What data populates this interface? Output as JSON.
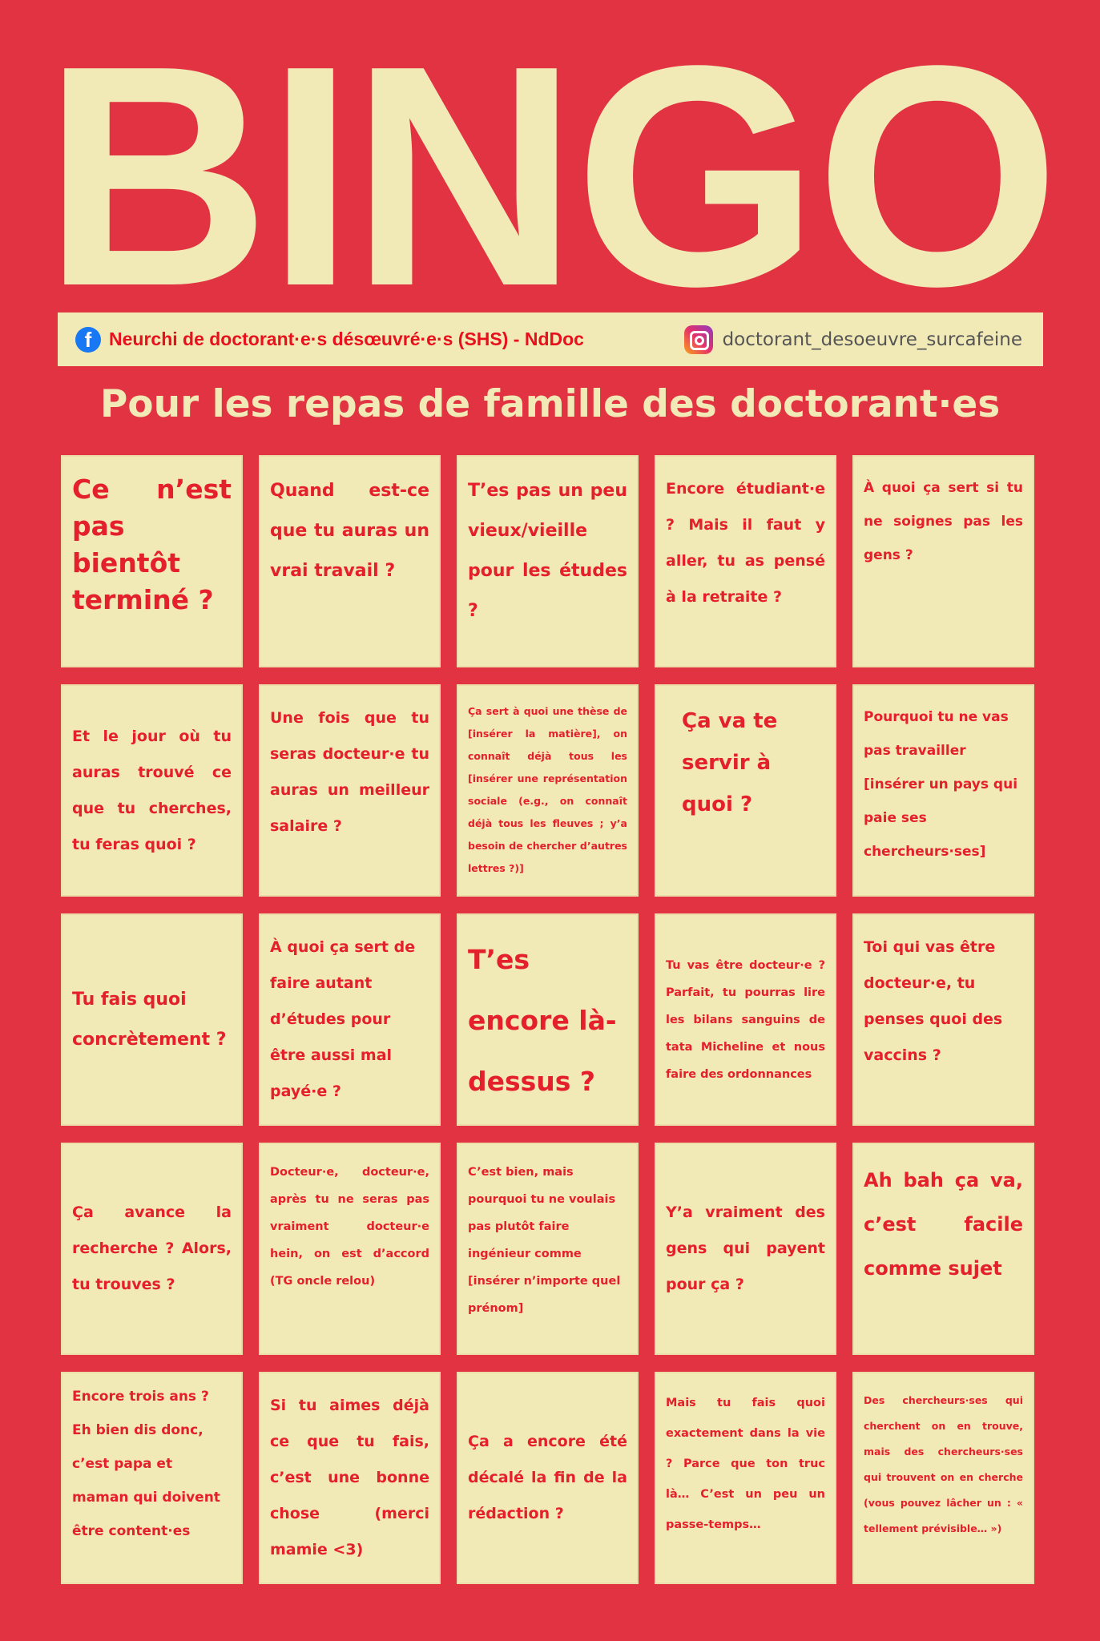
{
  "title": "BINGO",
  "banner": {
    "facebook_icon": "facebook-icon",
    "facebook_label": "Neurchi de doctorant·e·s désœuvré·e·s (SHS) - NdDoc",
    "instagram_icon": "instagram-icon",
    "instagram_label": "doctorant_desoeuvre_surcafeine"
  },
  "subtitle": "Pour les repas de famille des doctorant·es",
  "colors": {
    "background": "#e23343",
    "card": "#f1e9b6",
    "card_text": "#e4202c"
  },
  "cells": [
    "Ce n’est pas bientôt terminé ?",
    "Quand est-ce que tu auras un vrai travail ?",
    "T’es pas un peu vieux/vieille pour les études ?",
    "Encore étudiant·e ? Mais il faut y aller, tu as pensé à la retraite ?",
    "À quoi ça sert si tu ne soignes pas les gens ?",
    "Et le jour où tu auras trouvé ce que tu cherches, tu feras quoi ?",
    "Une fois que tu seras docteur·e tu auras un meilleur salaire ?",
    "Ça sert à quoi une thèse de [insérer la matière], on connaît déjà tous les [insérer une représentation sociale (e.g., on connaît déjà tous les fleuves ; y’a besoin de chercher d’autres lettres ?)]",
    "Ça va te servir à quoi ?",
    "Pourquoi tu ne vas pas travailler [insérer un pays qui paie ses chercheurs·ses]",
    "Tu fais quoi concrètement ?",
    "À quoi ça sert de faire autant d’études pour être aussi mal payé·e ?",
    "T’es encore là-dessus ?",
    "Tu vas être docteur·e ? Parfait, tu pourras lire les bilans sanguins de tata Micheline et nous faire des ordonnances",
    "Toi qui vas être docteur·e, tu penses quoi des vaccins ?",
    "Ça avance la recherche ? Alors, tu trouves ?",
    "Docteur·e, docteur·e, après tu ne seras pas vraiment docteur·e hein, on est d’accord (TG oncle relou)",
    "C’est bien, mais pourquoi tu ne voulais pas plutôt faire ingénieur comme [insérer n’importe quel prénom]",
    "Y’a vraiment des gens qui payent pour ça ?",
    "Ah bah ça va, c’est facile comme sujet",
    "Encore trois ans ? Eh bien dis donc, c’est papa et maman qui doivent être content·es",
    "Si tu aimes déjà ce que tu fais, c’est une bonne chose (merci mamie <3)",
    "Ça a encore été décalé la fin de la rédaction ?",
    "Mais tu fais quoi exactement dans la vie ? Parce que ton truc là… C’est un peu un passe-temps…",
    "Des chercheurs·ses qui cherchent on en trouve, mais des chercheurs·ses qui trouvent on en cherche (vous pouvez lâcher un : « tellement prévisible… »)"
  ]
}
